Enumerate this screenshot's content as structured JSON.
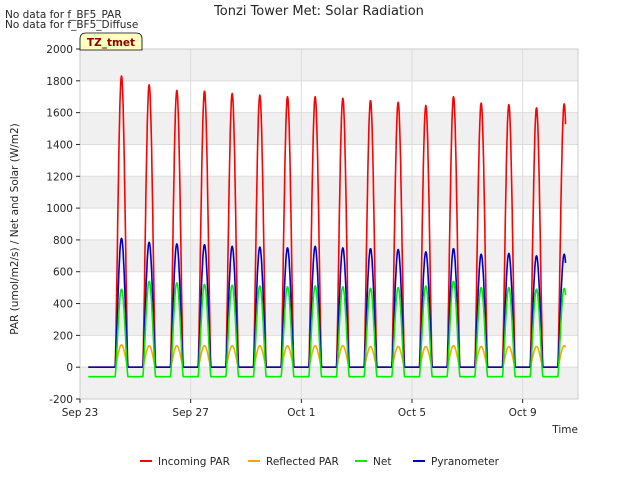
{
  "chart_data": {
    "type": "line",
    "title": "Tonzi Tower Met: Solar Radiation",
    "xlabel": "Time",
    "ylabel": "PAR (umol/m2/s) / Net and Solar (W/m2)",
    "ylim": [
      -200,
      2000
    ],
    "yticks": [
      -200,
      0,
      200,
      400,
      600,
      800,
      1000,
      1200,
      1400,
      1600,
      1800,
      2000
    ],
    "xlim_days": [
      0,
      18
    ],
    "xticks": [
      {
        "label": "Sep 23",
        "day": 0
      },
      {
        "label": "Sep 27",
        "day": 4
      },
      {
        "label": "Oct 1",
        "day": 8
      },
      {
        "label": "Oct 5",
        "day": 12
      },
      {
        "label": "Oct 9",
        "day": 16
      }
    ],
    "grid": true,
    "legend_position": "bottom",
    "notes": [
      "No data for f_BF5_PAR",
      "No data for f_BF5_Diffuse"
    ],
    "annotation_box": "TZ_tmet",
    "days": [
      "Sep 24",
      "Sep 25",
      "Sep 26",
      "Sep 27",
      "Sep 28",
      "Sep 29",
      "Sep 30",
      "Oct 1",
      "Oct 2",
      "Oct 3",
      "Oct 4",
      "Oct 5",
      "Oct 6",
      "Oct 7",
      "Oct 8",
      "Oct 9",
      "Oct 10"
    ],
    "series": [
      {
        "name": "Incoming PAR",
        "color": "#ff0000",
        "night": 0,
        "daily_peak": [
          1830,
          1775,
          1740,
          1735,
          1720,
          1710,
          1700,
          1700,
          1690,
          1675,
          1665,
          1645,
          1700,
          1660,
          1650,
          1630,
          1655
        ]
      },
      {
        "name": "Reflected PAR",
        "color": "#ffa500",
        "night": 0,
        "daily_peak": [
          140,
          135,
          135,
          135,
          135,
          135,
          135,
          135,
          135,
          130,
          130,
          130,
          135,
          130,
          130,
          130,
          135
        ]
      },
      {
        "name": "Net",
        "color": "#00ee00",
        "night": -60,
        "daily_peak": [
          490,
          540,
          530,
          520,
          515,
          510,
          505,
          510,
          505,
          495,
          500,
          510,
          540,
          500,
          500,
          490,
          495
        ]
      },
      {
        "name": "Pyranometer",
        "color": "#0000cc",
        "night": 0,
        "daily_peak": [
          810,
          785,
          775,
          770,
          760,
          755,
          750,
          760,
          750,
          745,
          740,
          725,
          745,
          710,
          715,
          700,
          710
        ]
      }
    ]
  }
}
